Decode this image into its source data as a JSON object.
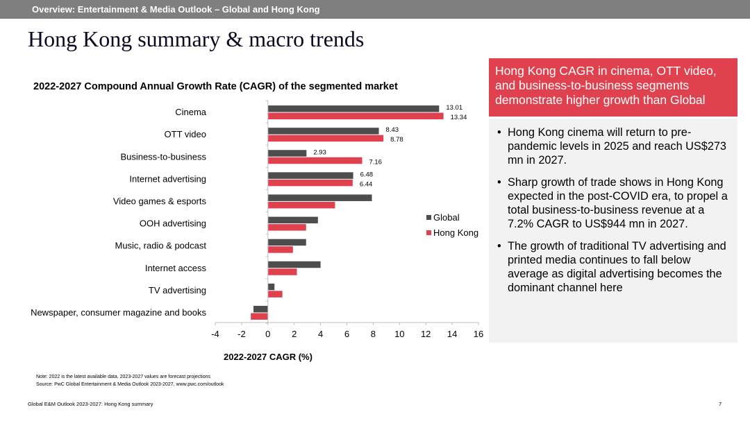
{
  "header": {
    "banner": "Overview: Entertainment & Media Outlook – Global and Hong Kong",
    "title": "Hong Kong summary & macro trends"
  },
  "chart_data": {
    "type": "bar",
    "orientation": "horizontal",
    "title": "2022-2027  Compound Annual Growth Rate (CAGR) of the segmented market",
    "xlabel": "2022-2027 CAGR (%)",
    "ylabel": "",
    "xlim": [
      -4,
      16
    ],
    "xticks": [
      -4,
      -2,
      0,
      2,
      4,
      6,
      8,
      10,
      12,
      14,
      16
    ],
    "categories": [
      "Cinema",
      "OTT video",
      "Business-to-business",
      "Internet advertising",
      "Video games & esports",
      "OOH advertising",
      "Music, radio & podcast",
      "Internet access",
      "TV advertising",
      "Newspaper, consumer magazine and books"
    ],
    "series": [
      {
        "name": "Global",
        "color": "#4d4d4d",
        "values": [
          13.01,
          8.43,
          2.93,
          6.48,
          7.9,
          3.8,
          2.9,
          4.0,
          0.5,
          -1.1
        ]
      },
      {
        "name": "Hong Kong",
        "color": "#e0414f",
        "values": [
          13.34,
          8.78,
          7.16,
          6.44,
          5.1,
          2.9,
          1.9,
          2.2,
          1.1,
          -1.3
        ]
      }
    ],
    "data_labels": [
      {
        "category": 0,
        "series": 0,
        "text": "13.01"
      },
      {
        "category": 0,
        "series": 1,
        "text": "13.34"
      },
      {
        "category": 1,
        "series": 0,
        "text": "8.43"
      },
      {
        "category": 1,
        "series": 1,
        "text": "8.78"
      },
      {
        "category": 2,
        "series": 0,
        "text": "2.93"
      },
      {
        "category": 2,
        "series": 1,
        "text": "7.16"
      },
      {
        "category": 3,
        "series": 0,
        "text": "6.48"
      },
      {
        "category": 3,
        "series": 1,
        "text": "6.44"
      }
    ],
    "legend_position": "right",
    "grid": false
  },
  "notes": {
    "note": "Note: 2022 is the latest available data. 2023-2027 values are forecast projections",
    "source": "Source: PwC Global Entertainment & Media Outlook 2023-2027, www.pwc.com/outlook"
  },
  "footer": {
    "left": "Global E&M Outlook 2023-2027: Hong Kong summary",
    "page_number": "7"
  },
  "callout": {
    "text": "Hong Kong CAGR in cinema, OTT video, and business-to-business segments demonstrate higher growth than Global",
    "color": "#e0414f"
  },
  "bullets": [
    "Hong Kong cinema will return to pre-pandemic levels in 2025 and reach US$273 mn in 2027.",
    "Sharp growth of trade shows in Hong Kong expected in the post-COVID era, to propel a total business-to-business revenue at a 7.2% CAGR to US$944 mn in 2027.",
    "The growth of traditional TV advertising and printed media continues to fall below average as digital advertising becomes the dominant channel here"
  ]
}
